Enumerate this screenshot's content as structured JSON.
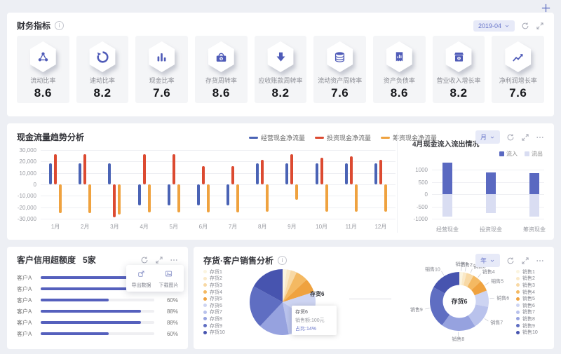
{
  "page": {
    "add_button_icon": "plus-icon",
    "background": "#EDEFF4",
    "accent": "#4F5BB8"
  },
  "kpi_panel": {
    "title": "财务指标",
    "date_filter": {
      "value": "2019-04",
      "caret_icon": "chevron-down-icon"
    },
    "controls": [
      "refresh-icon",
      "expand-icon"
    ],
    "cards": [
      {
        "label": "流动比率",
        "value": "8.6",
        "icon": "share-network-icon"
      },
      {
        "label": "速动比率",
        "value": "8.2",
        "icon": "refresh-circle-icon"
      },
      {
        "label": "现金比率",
        "value": "7.6",
        "icon": "bar-chart-icon"
      },
      {
        "label": "存货周转率",
        "value": "8.6",
        "icon": "cash-register-icon"
      },
      {
        "label": "应收账款周转率",
        "value": "8.2",
        "icon": "arrow-down-yen-icon"
      },
      {
        "label": "流动资产周转率",
        "value": "7.6",
        "icon": "coins-yen-icon"
      },
      {
        "label": "资产负债率",
        "value": "8.6",
        "icon": "document-chart-icon"
      },
      {
        "label": "营业收入增长率",
        "value": "8.2",
        "icon": "store-icon"
      },
      {
        "label": "净利润增长率",
        "value": "7.6",
        "icon": "trend-up-icon"
      }
    ]
  },
  "cashflow_panel": {
    "title": "现金流量趋势分析",
    "period_filter": {
      "value": "月",
      "caret_icon": "chevron-down-icon"
    },
    "controls": [
      "refresh-icon",
      "expand-icon",
      "more-icon"
    ]
  },
  "inflow_panel": {
    "title": "4月现金流入流出情况"
  },
  "credit_panel": {
    "title": "客户信用超额度",
    "count": "5家",
    "controls": [
      "refresh-icon",
      "expand-icon",
      "more-icon"
    ],
    "popup": [
      {
        "label": "导出数据",
        "icon": "export-icon"
      },
      {
        "label": "下载图片",
        "icon": "image-icon"
      }
    ]
  },
  "sales_panel": {
    "title": "存货·客户销售分析",
    "period_filter": {
      "value": "年",
      "caret_icon": "chevron-down-icon"
    },
    "controls": [
      "refresh-icon",
      "expand-icon",
      "more-icon"
    ]
  },
  "chart_data": [
    {
      "id": "cashflow_trend",
      "type": "bar",
      "title": "现金流量趋势分析",
      "categories": [
        "1月",
        "2月",
        "3月",
        "4月",
        "5月",
        "6月",
        "7月",
        "8月",
        "9月",
        "10月",
        "11月",
        "12月"
      ],
      "series": [
        {
          "name": "经营现金净流量",
          "color": "#4A63B5",
          "values": [
            18500,
            18500,
            18500,
            -18500,
            -18500,
            -18500,
            -18500,
            18500,
            18500,
            18500,
            18500,
            18500
          ]
        },
        {
          "name": "投资现金净流量",
          "color": "#DC4A31",
          "values": [
            26500,
            26500,
            -28500,
            26500,
            26500,
            16000,
            16000,
            21500,
            26500,
            23500,
            24500,
            21500
          ]
        },
        {
          "name": "筹资现金净流量",
          "color": "#EFA23F",
          "values": [
            -25000,
            -25000,
            -26500,
            -24500,
            -24500,
            -24500,
            -24500,
            -24000,
            -13500,
            -24000,
            -24000,
            -24000
          ]
        }
      ],
      "ylim": [
        -30000,
        30000
      ],
      "yticks": [
        "30,000",
        "20,000",
        "10,000",
        "0",
        "-10,000",
        "-20,000",
        "-30,000"
      ],
      "grid": true,
      "legend_position": "top"
    },
    {
      "id": "april_inout",
      "type": "bar",
      "stacked": true,
      "title": "4月现金流入流出情况",
      "categories": [
        "经营现金",
        "投资现金",
        "筹资现金"
      ],
      "series": [
        {
          "name": "流入",
          "color": "#5A69C1",
          "values": [
            1300,
            900,
            850
          ]
        },
        {
          "name": "流出",
          "color": "#D9DDF2",
          "values": [
            -900,
            -750,
            -900
          ]
        }
      ],
      "ylim": [
        -1100,
        1400
      ],
      "yticks": [
        "1000",
        "500",
        "0",
        "-500",
        "-1000"
      ],
      "ytick_values": [
        1000,
        500,
        0,
        -500,
        -1000
      ],
      "grid": true,
      "legend_position": "top-right"
    },
    {
      "id": "credit_usage",
      "type": "bar",
      "orientation": "horizontal",
      "title": "客户信用超额度",
      "categories": [
        "客户A",
        "客户A",
        "客户A",
        "客户A",
        "客户A",
        "客户A"
      ],
      "values": [
        88,
        88,
        60,
        88,
        88,
        60
      ],
      "value_labels": [
        "88%",
        "88%",
        "60%",
        "88%",
        "88%",
        "60%"
      ],
      "bar_color": "#5560BD",
      "xlim": [
        0,
        100
      ]
    },
    {
      "id": "inventory_pie",
      "type": "pie",
      "labels": [
        "存货1",
        "存货2",
        "存货3",
        "存货4",
        "存货5",
        "存货6",
        "存货7",
        "存货8",
        "存货9",
        "存货10"
      ],
      "values": [
        2,
        2,
        3,
        6,
        7,
        14,
        13,
        15,
        21,
        17
      ],
      "colors": [
        "#FBF4DF",
        "#FAE9C8",
        "#F8D9A5",
        "#F4B962",
        "#EFA23F",
        "#CDD4F2",
        "#B9C2EC",
        "#96A2DF",
        "#5F6EC2",
        "#4754AF"
      ],
      "highlight_label": "存货6",
      "tooltip": {
        "name": "存货6",
        "sales": "销售额:100元",
        "share": "占比:14%"
      },
      "legend_position": "left"
    },
    {
      "id": "sales_donut",
      "type": "pie",
      "donut": true,
      "labels": [
        "销售1",
        "销售2",
        "销售3",
        "销售4",
        "销售5",
        "销售6",
        "销售7",
        "销售8",
        "销售9",
        "销售10"
      ],
      "values": [
        2,
        2,
        4,
        5,
        6,
        9,
        13,
        19,
        23,
        17
      ],
      "colors": [
        "#FBF4DF",
        "#FAE9C8",
        "#F8D9A5",
        "#F4B962",
        "#EFA23F",
        "#CDD4F2",
        "#B9C2EC",
        "#96A2DF",
        "#5F6EC2",
        "#4754AF"
      ],
      "center_label": "存货6",
      "legend_position": "right"
    }
  ]
}
